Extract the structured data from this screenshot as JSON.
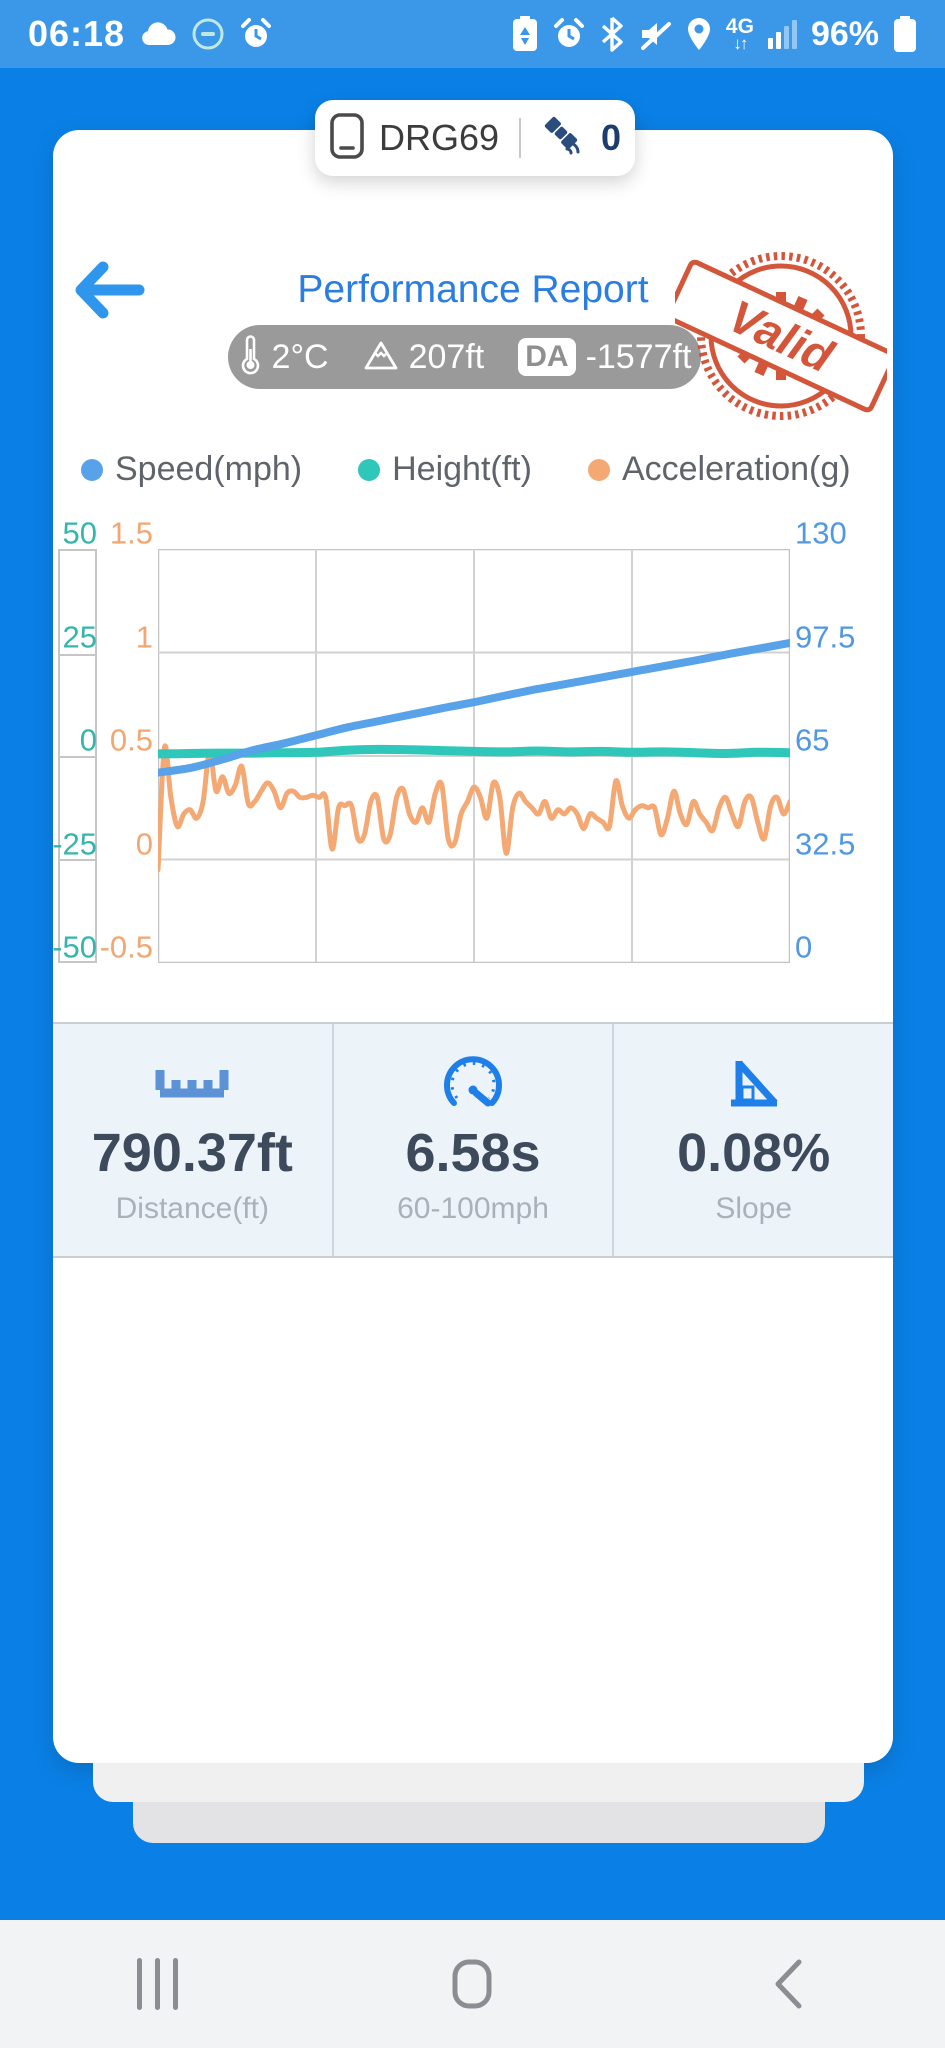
{
  "status_bar": {
    "time": "06:18",
    "battery_percent": "96%",
    "left_icons": [
      "cloud-icon",
      "app-badge-icon",
      "alarm-icon"
    ],
    "right_icons": [
      "battery-saver-icon",
      "alarm-icon",
      "bluetooth-icon",
      "mute-icon",
      "location-icon",
      "4g-network",
      "signal-bars",
      "battery-icon"
    ],
    "network_label": "4G",
    "network_arrows": "↓↑"
  },
  "device_pill": {
    "device_name": "DRG69",
    "satellite_count": "0"
  },
  "header": {
    "title": "Performance Report",
    "stamp_text": "Valid",
    "stamp_color": "#d14a2c"
  },
  "conditions": {
    "temperature": "2°C",
    "altitude": "207ft",
    "da_label": "DA",
    "density_altitude": "-1577ft"
  },
  "chart_data": {
    "type": "line",
    "title": "",
    "legend_position": "top",
    "grid": true,
    "x_axis": {
      "labels_visible": false
    },
    "axes": {
      "height": {
        "name": "Height(ft)",
        "side": "left-outer",
        "range": [
          -50,
          50
        ],
        "ticks": [
          "50",
          "25",
          "0",
          "-25",
          "-50"
        ],
        "color": "#35b5ac"
      },
      "accel": {
        "name": "Acceleration(g)",
        "side": "left-inner",
        "range": [
          -0.5,
          1.5
        ],
        "ticks": [
          "1.5",
          "1",
          "0.5",
          "0",
          "-0.5"
        ],
        "color": "#f2a671"
      },
      "speed": {
        "name": "Speed(mph)",
        "side": "right",
        "range": [
          0,
          130
        ],
        "ticks": [
          "130",
          "97.5",
          "65",
          "32.5",
          "0"
        ],
        "color": "#5198e2"
      }
    },
    "series": [
      {
        "name": "Speed(mph)",
        "axis": "speed",
        "color": "#57a2e8",
        "width": 8,
        "values": [
          59.8,
          61.2,
          63.8,
          66.8,
          69.0,
          71.5,
          74.0,
          76.0,
          78.0,
          80.0,
          81.9,
          84.0,
          86.0,
          87.8,
          89.6,
          91.4,
          93.2,
          95.0,
          96.9,
          98.7,
          100.5
        ]
      },
      {
        "name": "Height(ft)",
        "axis": "height",
        "color": "#2ec7b9",
        "width": 9,
        "values": [
          0.5,
          0.6,
          0.7,
          0.7,
          0.8,
          0.9,
          1.4,
          1.6,
          1.5,
          1.3,
          1.1,
          1.0,
          1.2,
          1.0,
          1.1,
          0.9,
          1.0,
          0.8,
          0.6,
          0.9,
          0.8
        ]
      },
      {
        "name": "Acceleration(g)",
        "axis": "accel",
        "color": "#f4a873",
        "width": 5,
        "values": [
          -0.05,
          0.54,
          0.3,
          0.16,
          0.22,
          0.24,
          0.2,
          0.28,
          0.52,
          0.33,
          0.4,
          0.32,
          0.36,
          0.45,
          0.27,
          0.28,
          0.33,
          0.37,
          0.33,
          0.25,
          0.32,
          0.33,
          0.3,
          0.3,
          0.31,
          0.3,
          0.3,
          0.05,
          0.25,
          0.26,
          0.26,
          0.1,
          0.12,
          0.28,
          0.3,
          0.1,
          0.12,
          0.3,
          0.34,
          0.22,
          0.18,
          0.25,
          0.18,
          0.32,
          0.36,
          0.1,
          0.08,
          0.22,
          0.28,
          0.35,
          0.3,
          0.2,
          0.37,
          0.3,
          0.03,
          0.25,
          0.32,
          0.28,
          0.25,
          0.22,
          0.28,
          0.2,
          0.24,
          0.22,
          0.25,
          0.22,
          0.15,
          0.22,
          0.2,
          0.18,
          0.16,
          0.38,
          0.26,
          0.2,
          0.24,
          0.26,
          0.25,
          0.25,
          0.12,
          0.2,
          0.33,
          0.22,
          0.17,
          0.28,
          0.22,
          0.18,
          0.14,
          0.25,
          0.3,
          0.22,
          0.16,
          0.28,
          0.3,
          0.18,
          0.1,
          0.26,
          0.3,
          0.22,
          0.28
        ]
      }
    ]
  },
  "stats": [
    {
      "icon": "ruler-icon",
      "value": "790.37ft",
      "label": "Distance(ft)"
    },
    {
      "icon": "speedometer-icon",
      "value": "6.58s",
      "label": "60-100mph"
    },
    {
      "icon": "slope-icon",
      "value": "0.08%",
      "label": "Slope"
    }
  ],
  "nav_bar": {
    "icons": [
      "recents-icon",
      "home-icon",
      "back-icon"
    ]
  },
  "colors": {
    "background": "#0a80e6",
    "status_bar": "#3b97e8",
    "card": "#ffffff",
    "stats_bg": "#edf4f9",
    "accent_blue": "#1f7fe8",
    "title_blue": "#2a7de1",
    "pill_gray": "#9a9a9a",
    "nav_bg": "#f2f3f5"
  }
}
